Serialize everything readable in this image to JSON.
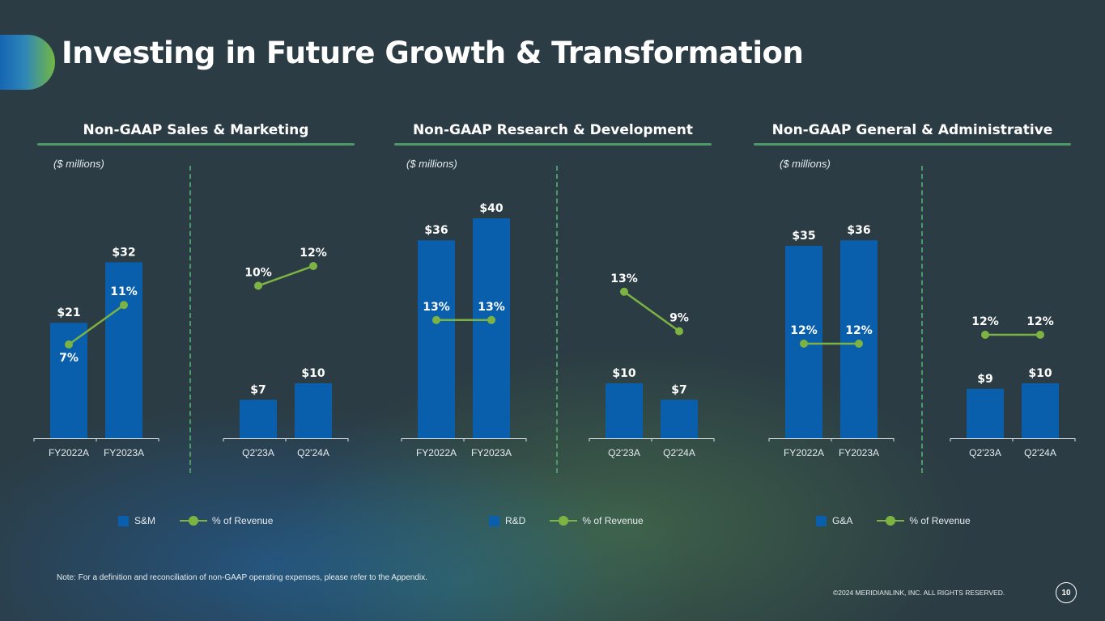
{
  "page": {
    "title": "Investing in Future Growth & Transformation",
    "note": "Note: For a definition and reconciliation of non-GAAP operating expenses, please refer to the Appendix.",
    "copyright": "©2024 MERIDIANLINK, INC. ALL RIGHTS RESERVED.",
    "page_number": "10"
  },
  "colors": {
    "bar": "#0a5fac",
    "line": "#7db343",
    "rule": "#4c9a68",
    "background": "#2b3c44"
  },
  "panels": [
    {
      "title": "Non-GAAP Sales & Marketing",
      "units": "($ millions)",
      "legend": {
        "bar_label": "S&M",
        "line_label": "% of Revenue"
      }
    },
    {
      "title": "Non-GAAP Research & Development",
      "units": "($ millions)",
      "legend": {
        "bar_label": "R&D",
        "line_label": "% of Revenue"
      }
    },
    {
      "title": "Non-GAAP General & Administrative",
      "units": "($ millions)",
      "legend": {
        "bar_label": "G&A",
        "line_label": "% of Revenue"
      }
    }
  ],
  "chart_data": [
    {
      "type": "bar",
      "title": "Non-GAAP Sales & Marketing — Annual",
      "categories": [
        "FY2022A",
        "FY2023A"
      ],
      "series": [
        {
          "name": "S&M",
          "values": [
            21,
            32
          ],
          "labels": [
            "$21",
            "$32"
          ]
        },
        {
          "name": "% of Revenue",
          "type": "line",
          "values": [
            7,
            11
          ],
          "labels": [
            "7%",
            "11%"
          ]
        }
      ],
      "ylabel": "($ millions)"
    },
    {
      "type": "bar",
      "title": "Non-GAAP Sales & Marketing — Quarterly",
      "categories": [
        "Q2'23A",
        "Q2'24A"
      ],
      "series": [
        {
          "name": "S&M",
          "values": [
            7,
            10
          ],
          "labels": [
            "$7",
            "$10"
          ]
        },
        {
          "name": "% of Revenue",
          "type": "line",
          "values": [
            10,
            12
          ],
          "labels": [
            "10%",
            "12%"
          ]
        }
      ],
      "ylabel": "($ millions)"
    },
    {
      "type": "bar",
      "title": "Non-GAAP Research & Development — Annual",
      "categories": [
        "FY2022A",
        "FY2023A"
      ],
      "series": [
        {
          "name": "R&D",
          "values": [
            36,
            40
          ],
          "labels": [
            "$36",
            "$40"
          ]
        },
        {
          "name": "% of Revenue",
          "type": "line",
          "values": [
            13,
            13
          ],
          "labels": [
            "13%",
            "13%"
          ]
        }
      ],
      "ylabel": "($ millions)"
    },
    {
      "type": "bar",
      "title": "Non-GAAP Research & Development — Quarterly",
      "categories": [
        "Q2'23A",
        "Q2'24A"
      ],
      "series": [
        {
          "name": "R&D",
          "values": [
            10,
            7
          ],
          "labels": [
            "$10",
            "$7"
          ]
        },
        {
          "name": "% of Revenue",
          "type": "line",
          "values": [
            13,
            9
          ],
          "labels": [
            "13%",
            "9%"
          ]
        }
      ],
      "ylabel": "($ millions)"
    },
    {
      "type": "bar",
      "title": "Non-GAAP General & Administrative — Annual",
      "categories": [
        "FY2022A",
        "FY2023A"
      ],
      "series": [
        {
          "name": "G&A",
          "values": [
            35,
            36
          ],
          "labels": [
            "$35",
            "$36"
          ]
        },
        {
          "name": "% of Revenue",
          "type": "line",
          "values": [
            12,
            12
          ],
          "labels": [
            "12%",
            "12%"
          ]
        }
      ],
      "ylabel": "($ millions)"
    },
    {
      "type": "bar",
      "title": "Non-GAAP General & Administrative — Quarterly",
      "categories": [
        "Q2'23A",
        "Q2'24A"
      ],
      "series": [
        {
          "name": "G&A",
          "values": [
            9,
            10
          ],
          "labels": [
            "$9",
            "$10"
          ]
        },
        {
          "name": "% of Revenue",
          "type": "line",
          "values": [
            12,
            12
          ],
          "labels": [
            "12%",
            "12%"
          ]
        }
      ],
      "ylabel": "($ millions)"
    }
  ]
}
